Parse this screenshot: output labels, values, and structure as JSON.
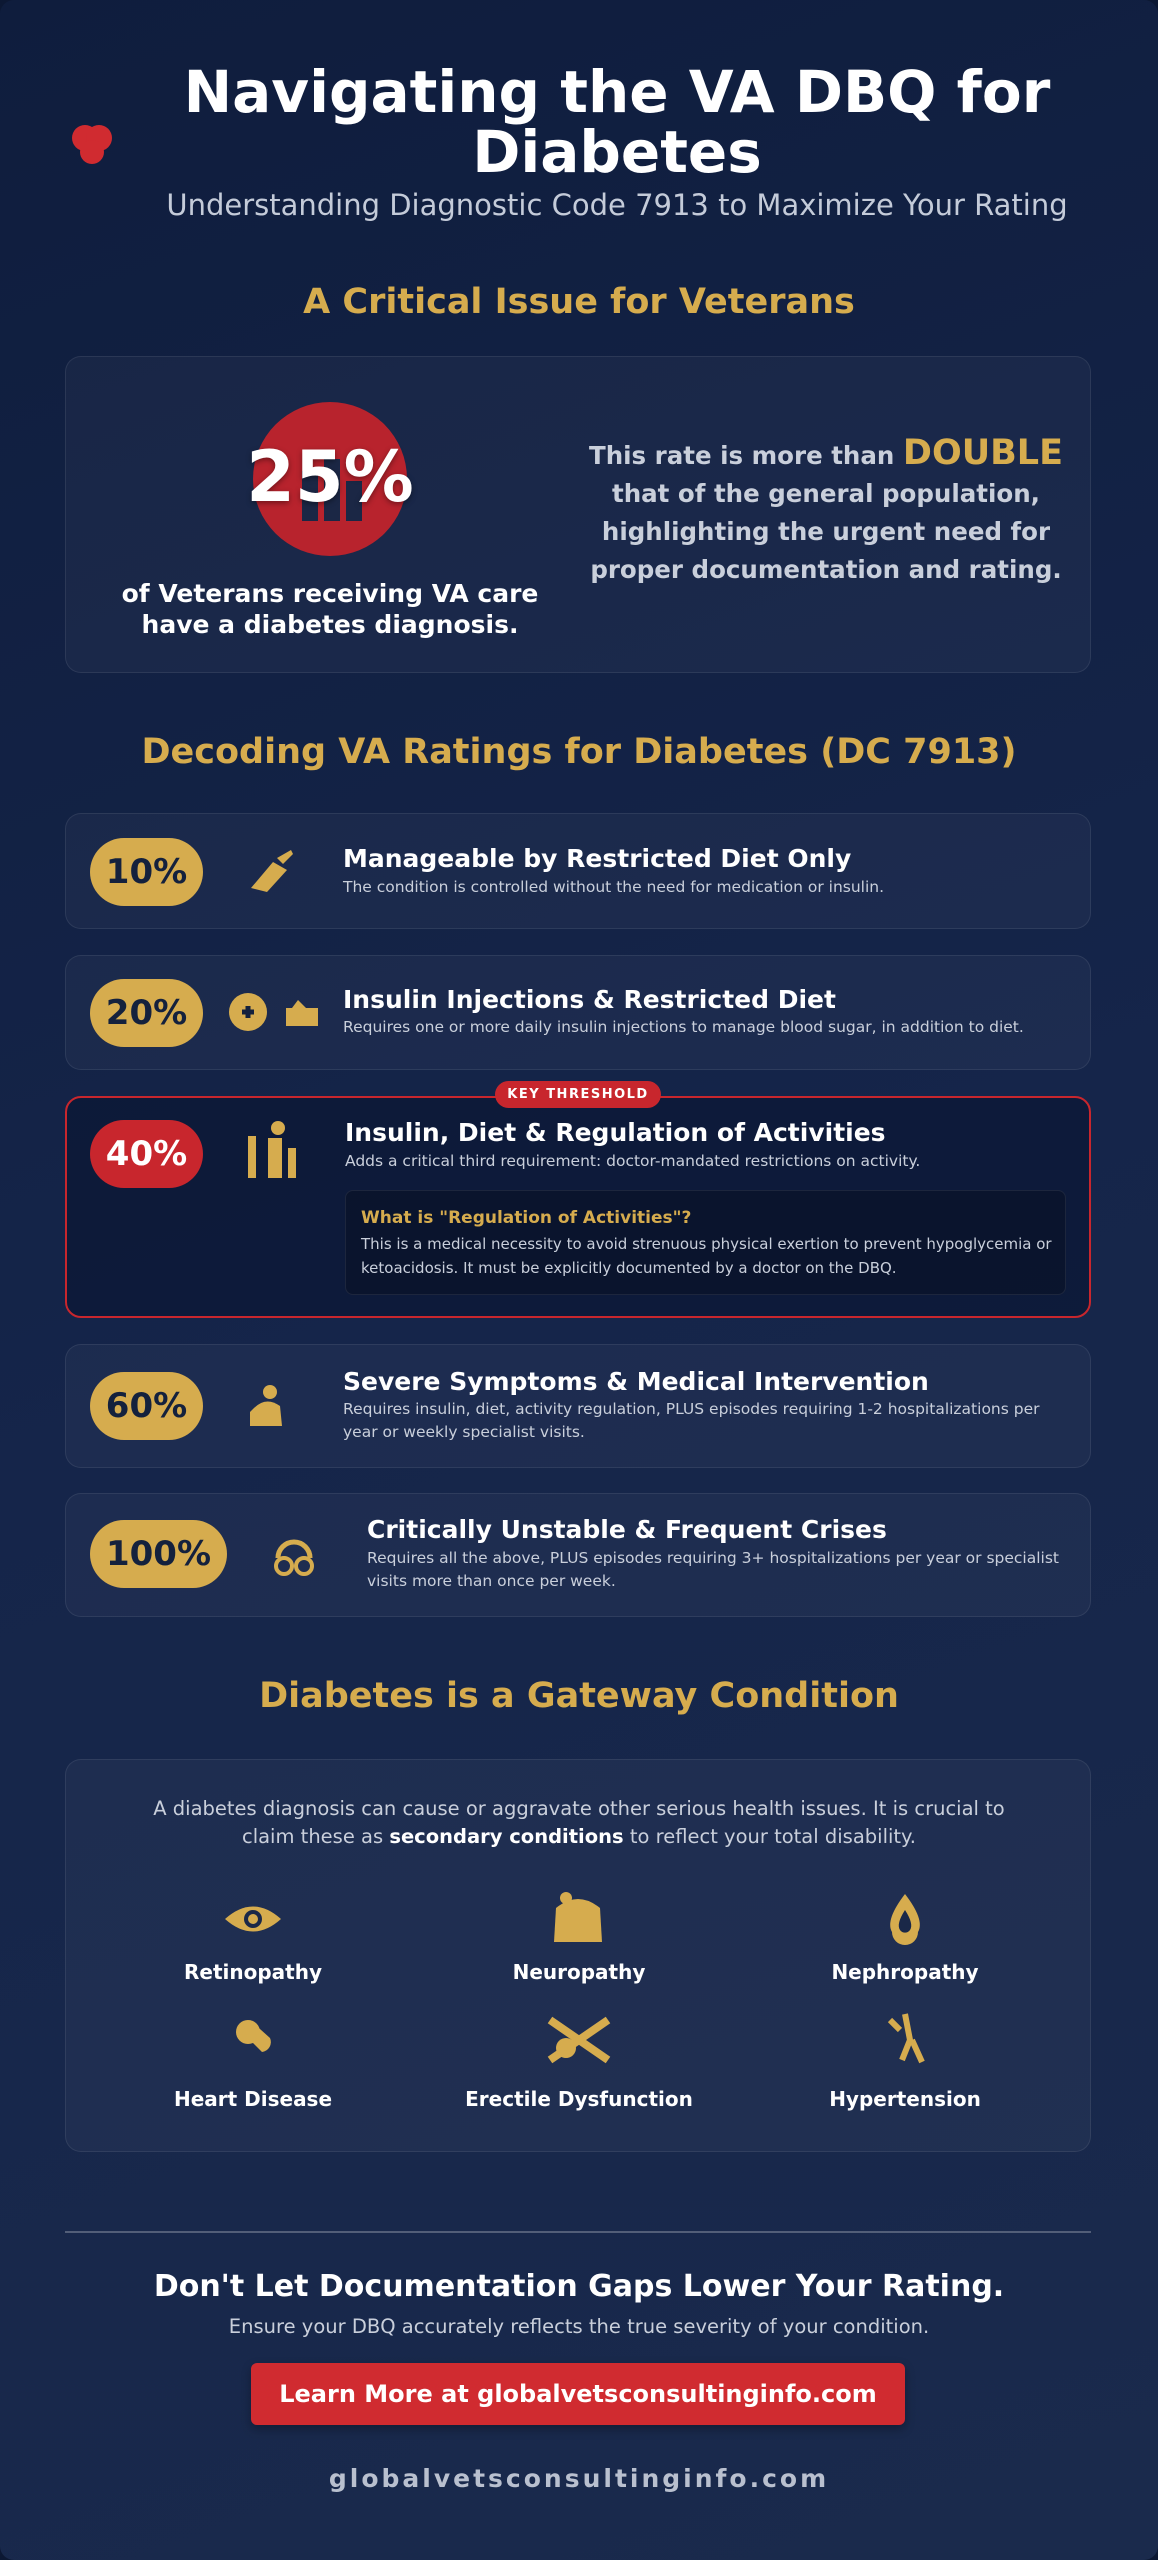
{
  "header": {
    "title": "Navigating the VA DBQ for Diabetes",
    "subtitle": "Understanding Diagnostic Code 7913 to Maximize Your Rating"
  },
  "critical": {
    "heading": "A Critical Issue for Veterans",
    "stat": "25%",
    "caption": "of Veterans receiving VA care have a diabetes diagnosis.",
    "note_before": "This rate is more than",
    "note_emphasis": "DOUBLE",
    "note_after": "that of the general population, highlighting the urgent need for proper documentation and rating."
  },
  "ratings": {
    "heading": "Decoding VA Ratings for Diabetes (DC 7913)",
    "items": [
      {
        "percent": "10%",
        "title": "Manageable by Restricted Diet Only",
        "description": "The condition is controlled without the need for medication or insulin."
      },
      {
        "percent": "20%",
        "title": "Insulin Injections & Restricted Diet",
        "description": "Requires one or more daily insulin injections to manage blood sugar, in addition to diet."
      },
      {
        "percent": "40%",
        "badge": "KEY THRESHOLD",
        "title": "Insulin, Diet & Regulation of Activities",
        "description": "Adds a critical third requirement: doctor-mandated restrictions on activity.",
        "note_title": "What is \"Regulation of Activities\"?",
        "note_text": "This is a medical necessity to avoid strenuous physical exertion to prevent hypoglycemia or ketoacidosis. It must be explicitly documented by a doctor on the DBQ."
      },
      {
        "percent": "60%",
        "title": "Severe Symptoms & Medical Intervention",
        "description": "Requires insulin, diet, activity regulation, PLUS episodes requiring 1-2 hospitalizations per year or weekly specialist visits."
      },
      {
        "percent": "100%",
        "title": "Critically Unstable & Frequent Crises",
        "description": "Requires all the above, PLUS episodes requiring 3+ hospitalizations per year or specialist visits more than once per week."
      }
    ]
  },
  "gateway": {
    "heading": "Diabetes is a Gateway Condition",
    "intro_before": "A diabetes diagnosis can cause or aggravate other serious health issues. It is crucial to claim these as",
    "intro_bold": "secondary conditions",
    "intro_after": "to reflect your total disability.",
    "conditions": [
      "Retinopathy",
      "Neuropathy",
      "Nephropathy",
      "Heart Disease",
      "Erectile Dysfunction",
      "Hypertension"
    ]
  },
  "cta": {
    "heading": "Don't Let Documentation Gaps Lower Your Rating.",
    "subheading": "Ensure your DBQ accurately reflects the true severity of your condition.",
    "button": "Learn More at globalvetsconsultinginfo.com",
    "footer": "globalvetsconsultinginfo.com"
  }
}
